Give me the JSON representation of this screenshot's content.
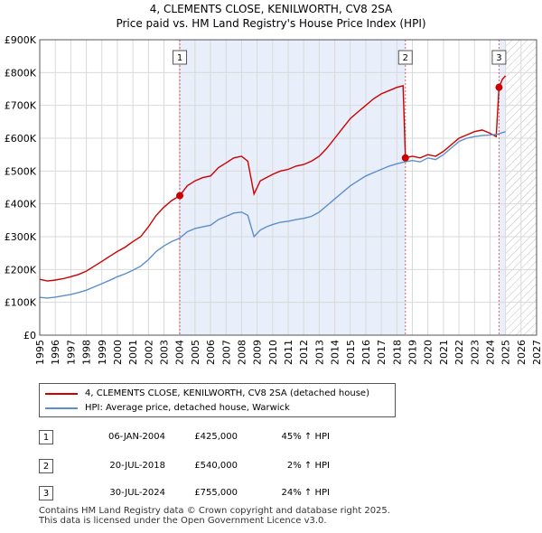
{
  "chart_data": {
    "type": "line",
    "title": "4, CLEMENTS CLOSE, KENILWORTH, CV8 2SA",
    "subtitle": "Price paid vs. HM Land Registry's House Price Index (HPI)",
    "xlim": [
      1995,
      2027
    ],
    "ylim": [
      0,
      900000
    ],
    "x_ticks": [
      1995,
      1996,
      1997,
      1998,
      1999,
      2000,
      2001,
      2002,
      2003,
      2004,
      2005,
      2006,
      2007,
      2008,
      2009,
      2010,
      2011,
      2012,
      2013,
      2014,
      2015,
      2016,
      2017,
      2018,
      2019,
      2020,
      2021,
      2022,
      2023,
      2024,
      2025,
      2026,
      2027
    ],
    "y_ticks": [
      0,
      100000,
      200000,
      300000,
      400000,
      500000,
      600000,
      700000,
      800000,
      900000
    ],
    "y_tick_labels": [
      "£0",
      "£100K",
      "£200K",
      "£300K",
      "£400K",
      "£500K",
      "£600K",
      "£700K",
      "£800K",
      "£900K"
    ],
    "grid": true,
    "shaded_ranges": [
      [
        2004.02,
        2018.55
      ],
      [
        2024.58,
        2025.0
      ]
    ],
    "hatched_range": [
      2025.0,
      2027
    ],
    "series": [
      {
        "name": "4, CLEMENTS CLOSE, KENILWORTH, CV8 2SA (detached house)",
        "color": "#cc0000",
        "x": [
          1995.0,
          1995.5,
          1996.0,
          1996.5,
          1997.0,
          1997.5,
          1998.0,
          1998.5,
          1999.0,
          1999.5,
          2000.0,
          2000.5,
          2001.0,
          2001.5,
          2002.0,
          2002.5,
          2003.0,
          2003.5,
          2004.02,
          2004.5,
          2005.0,
          2005.5,
          2006.0,
          2006.5,
          2007.0,
          2007.5,
          2008.0,
          2008.4,
          2008.8,
          2009.2,
          2009.6,
          2010.0,
          2010.5,
          2011.0,
          2011.5,
          2012.0,
          2012.5,
          2013.0,
          2013.5,
          2014.0,
          2014.5,
          2015.0,
          2015.5,
          2016.0,
          2016.5,
          2017.0,
          2017.5,
          2018.0,
          2018.4,
          2018.55,
          2019.0,
          2019.5,
          2020.0,
          2020.5,
          2021.0,
          2021.5,
          2022.0,
          2022.5,
          2023.0,
          2023.5,
          2024.0,
          2024.4,
          2024.58,
          2024.8,
          2025.0
        ],
        "y": [
          170000,
          165000,
          168000,
          172000,
          178000,
          185000,
          195000,
          210000,
          225000,
          240000,
          255000,
          268000,
          285000,
          300000,
          330000,
          365000,
          390000,
          410000,
          425000,
          455000,
          470000,
          480000,
          485000,
          510000,
          525000,
          540000,
          545000,
          530000,
          430000,
          470000,
          480000,
          490000,
          500000,
          505000,
          515000,
          520000,
          530000,
          545000,
          570000,
          600000,
          630000,
          660000,
          680000,
          700000,
          720000,
          735000,
          745000,
          755000,
          760000,
          540000,
          545000,
          540000,
          550000,
          545000,
          560000,
          580000,
          600000,
          610000,
          620000,
          625000,
          615000,
          605000,
          755000,
          780000,
          790000
        ]
      },
      {
        "name": "HPI: Average price, detached house, Warwick",
        "color": "#5b8fc9",
        "x": [
          1995.0,
          1995.5,
          1996.0,
          1996.5,
          1997.0,
          1997.5,
          1998.0,
          1998.5,
          1999.0,
          1999.5,
          2000.0,
          2000.5,
          2001.0,
          2001.5,
          2002.0,
          2002.5,
          2003.0,
          2003.5,
          2004.0,
          2004.5,
          2005.0,
          2005.5,
          2006.0,
          2006.5,
          2007.0,
          2007.5,
          2008.0,
          2008.4,
          2008.8,
          2009.2,
          2009.6,
          2010.0,
          2010.5,
          2011.0,
          2011.5,
          2012.0,
          2012.5,
          2013.0,
          2013.5,
          2014.0,
          2014.5,
          2015.0,
          2015.5,
          2016.0,
          2016.5,
          2017.0,
          2017.5,
          2018.0,
          2018.5,
          2019.0,
          2019.5,
          2020.0,
          2020.5,
          2021.0,
          2021.5,
          2022.0,
          2022.5,
          2023.0,
          2023.5,
          2024.0,
          2024.5,
          2025.0
        ],
        "y": [
          115000,
          113000,
          116000,
          120000,
          124000,
          130000,
          137000,
          147000,
          157000,
          167000,
          178000,
          187000,
          198000,
          210000,
          230000,
          255000,
          272000,
          285000,
          295000,
          315000,
          325000,
          330000,
          335000,
          352000,
          362000,
          372000,
          375000,
          365000,
          300000,
          320000,
          330000,
          337000,
          344000,
          347000,
          352000,
          356000,
          362000,
          375000,
          395000,
          415000,
          435000,
          455000,
          470000,
          485000,
          495000,
          505000,
          515000,
          522000,
          528000,
          532000,
          528000,
          540000,
          535000,
          550000,
          570000,
          590000,
          600000,
          605000,
          608000,
          610000,
          612000,
          620000
        ]
      }
    ],
    "sales": [
      {
        "label": "1",
        "x": 2004.02,
        "y": 425000
      },
      {
        "label": "2",
        "x": 2018.55,
        "y": 540000
      },
      {
        "label": "3",
        "x": 2024.58,
        "y": 755000
      }
    ]
  },
  "legend": {
    "entries": [
      {
        "label": "4, CLEMENTS CLOSE, KENILWORTH, CV8 2SA (detached house)",
        "color": "#cc0000"
      },
      {
        "label": "HPI: Average price, detached house, Warwick",
        "color": "#5b8fc9"
      }
    ]
  },
  "sales_table": [
    {
      "num": "1",
      "date": "06-JAN-2004",
      "price": "£425,000",
      "hpi": "45% ↑ HPI"
    },
    {
      "num": "2",
      "date": "20-JUL-2018",
      "price": "£540,000",
      "hpi": "2% ↑ HPI"
    },
    {
      "num": "3",
      "date": "30-JUL-2024",
      "price": "£755,000",
      "hpi": "24% ↑ HPI"
    }
  ],
  "footer": {
    "line1": "Contains HM Land Registry data © Crown copyright and database right 2025.",
    "line2": "This data is licensed under the Open Government Licence v3.0."
  }
}
